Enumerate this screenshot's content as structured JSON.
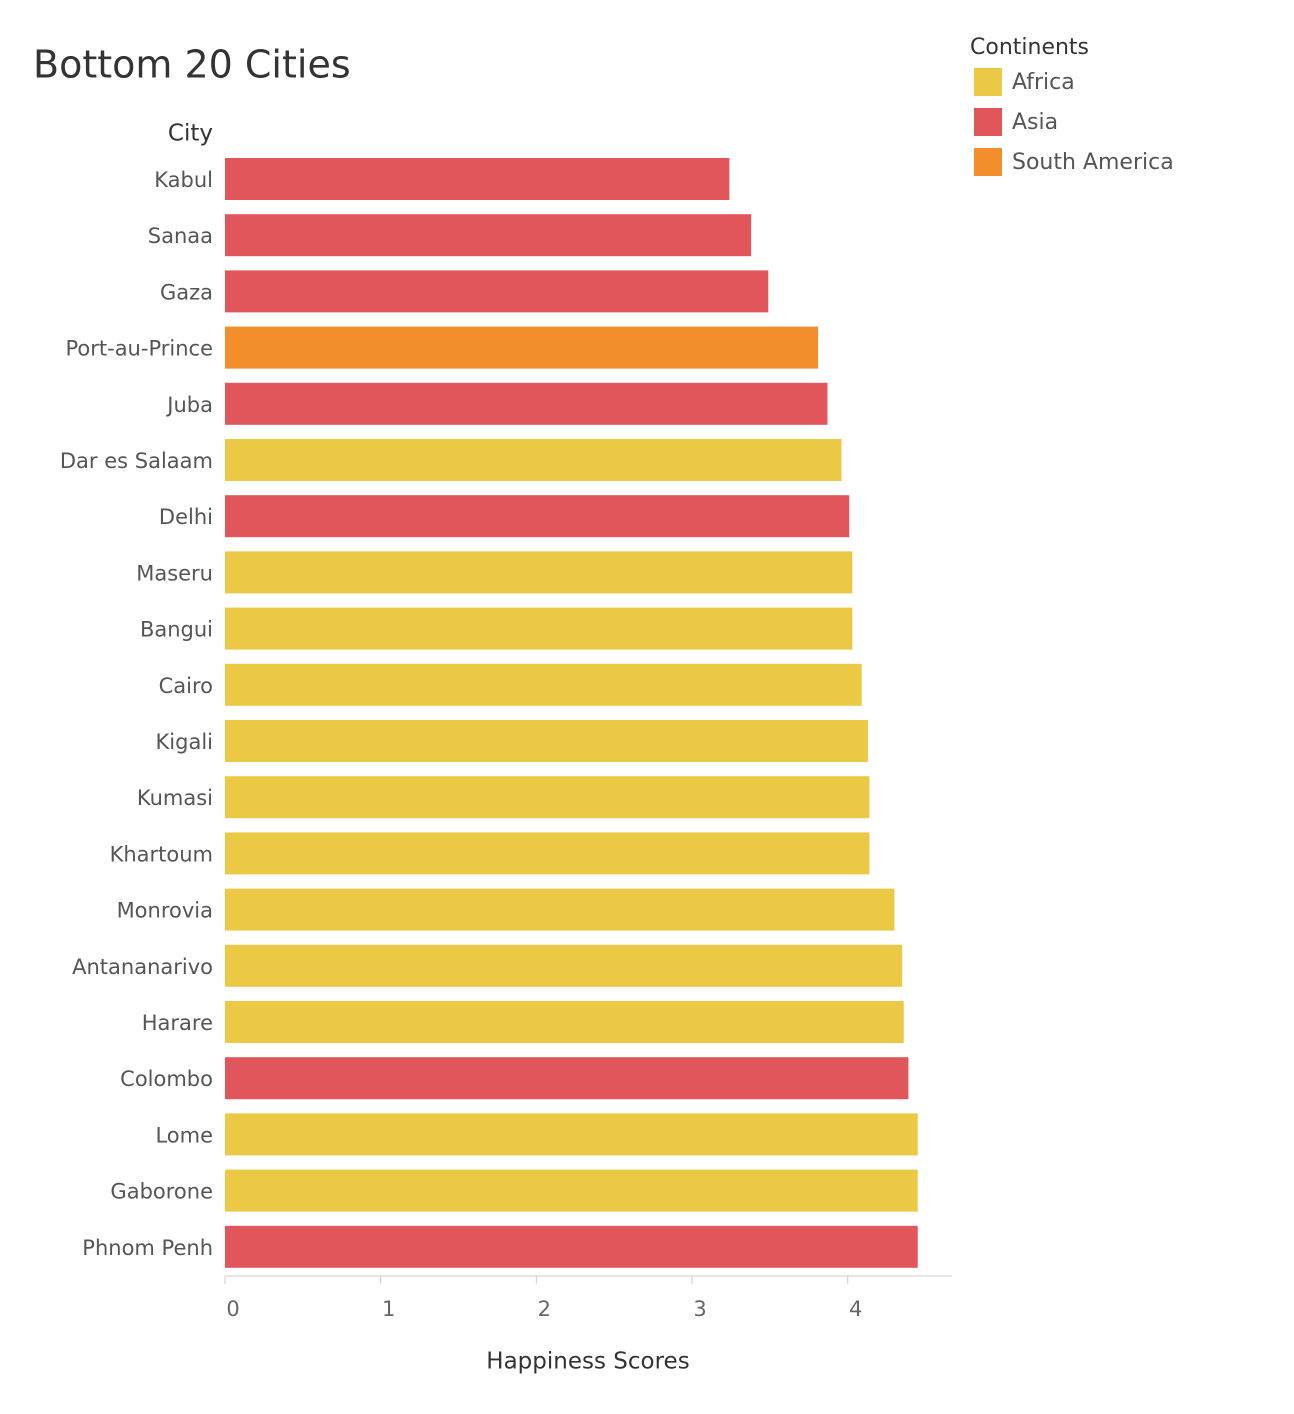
{
  "chart_data": {
    "type": "bar",
    "orientation": "horizontal",
    "title": "Bottom 20 Cities",
    "y_label": "City",
    "x_label": "Happiness Scores",
    "legend_title": "Continents",
    "legend": "top-right",
    "categories": [
      "Kabul",
      "Sanaa",
      "Gaza",
      "Port-au-Prince",
      "Juba",
      "Dar es Salaam",
      "Delhi",
      "Maseru",
      "Bangui",
      "Cairo",
      "Kigali",
      "Kumasi",
      "Khartoum",
      "Monrovia",
      "Antananarivo",
      "Harare",
      "Colombo",
      "Lome",
      "Gaborone",
      "Phnom Penh"
    ],
    "series": [
      {
        "name": "Africa",
        "color": "#ebc944",
        "values": [
          null,
          null,
          null,
          null,
          null,
          3.96,
          null,
          4.03,
          4.03,
          4.09,
          4.13,
          4.14,
          4.14,
          4.3,
          4.35,
          4.36,
          null,
          4.45,
          4.45,
          null
        ]
      },
      {
        "name": "Asia",
        "color": "#e0565b",
        "values": [
          3.24,
          3.38,
          3.49,
          null,
          3.87,
          null,
          4.01,
          null,
          null,
          null,
          null,
          null,
          null,
          null,
          null,
          null,
          4.39,
          null,
          null,
          4.45
        ]
      },
      {
        "name": "South America",
        "color": "#f28e2b",
        "values": [
          null,
          null,
          null,
          3.81,
          null,
          null,
          null,
          null,
          null,
          null,
          null,
          null,
          null,
          null,
          null,
          null,
          null,
          null,
          null,
          null
        ]
      }
    ],
    "xlim": [
      0,
      4.67
    ],
    "xticks": [
      0,
      1,
      2,
      3,
      4
    ],
    "grid": false
  }
}
